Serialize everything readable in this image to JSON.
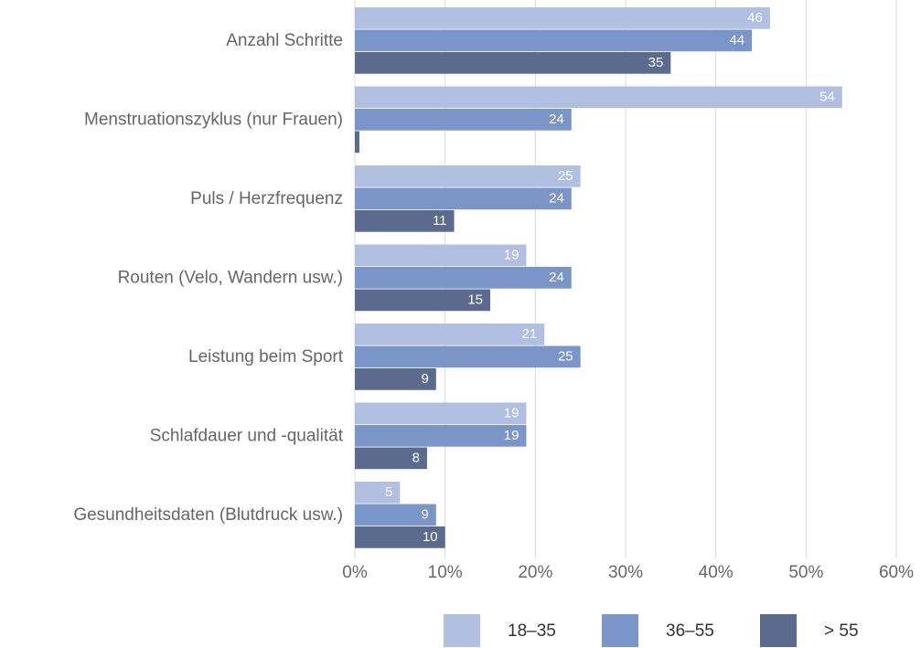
{
  "chart_data": {
    "type": "barh",
    "categories": [
      "Anzahl Schritte",
      "Menstruationszyklus (nur Frauen)",
      "Puls / Herzfrequenz",
      "Routen (Velo, Wandern usw.)",
      "Leistung beim Sport",
      "Schlafdauer und -qualität",
      "Gesundheitsdaten (Blutdruck usw.)"
    ],
    "series": [
      {
        "name": "18–35",
        "color": "#b1c0e1",
        "values": [
          46,
          54,
          25,
          19,
          21,
          19,
          5
        ]
      },
      {
        "name": "36–55",
        "color": "#7a95c8",
        "values": [
          44,
          24,
          24,
          24,
          25,
          19,
          9
        ]
      },
      {
        "name": "> 55",
        "color": "#5a6b8d",
        "values": [
          35,
          0.5,
          11,
          15,
          9,
          8,
          10
        ]
      }
    ],
    "xlim": [
      0,
      60
    ],
    "xticks": [
      {
        "value": 0,
        "label": "0%"
      },
      {
        "value": 10,
        "label": "10%"
      },
      {
        "value": 20,
        "label": "20%"
      },
      {
        "value": 30,
        "label": "30%"
      },
      {
        "value": 40,
        "label": "40%"
      },
      {
        "value": 50,
        "label": "50%"
      },
      {
        "value": 60,
        "label": "60%"
      }
    ],
    "grid": true,
    "legend": "bottom"
  }
}
